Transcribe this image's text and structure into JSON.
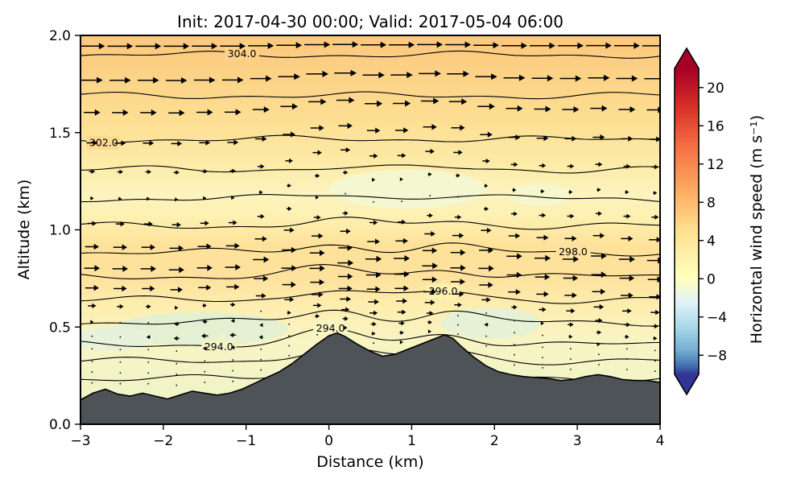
{
  "figure": {
    "background": "#ffffff"
  },
  "chart_data": {
    "type": "heatmap",
    "title": "Init: 2017-04-30 00:00; Valid: 2017-05-04 06:00",
    "xlabel": "Distance (km)",
    "ylabel": "Altitude (km)",
    "xlim": [
      -3,
      4
    ],
    "ylim": [
      0.0,
      2.0
    ],
    "x_ticks": [
      -3,
      -2,
      -1,
      0,
      1,
      2,
      3,
      4
    ],
    "x_tick_labels": [
      "−3",
      "−2",
      "−1",
      "0",
      "1",
      "2",
      "3",
      "4"
    ],
    "y_ticks": [
      0.0,
      0.5,
      1.0,
      1.5,
      2.0
    ],
    "y_tick_labels": [
      "0.0",
      "0.5",
      "1.0",
      "1.5",
      "2.0"
    ],
    "grid": false,
    "colorbar": {
      "label": "Horizontal wind speed (m s⁻¹)",
      "ticks": [
        20,
        16,
        12,
        8,
        4,
        0,
        -4,
        -8
      ],
      "tick_labels": [
        "20",
        "16",
        "12",
        "8",
        "4",
        "0",
        "−4",
        "−8"
      ],
      "vmin": -10,
      "vmax": 22,
      "colormap": "RdYlBu_r",
      "extend": "both",
      "gradient": [
        {
          "o": 0,
          "c": "#a50026"
        },
        {
          "o": 12.5,
          "c": "#d73027"
        },
        {
          "o": 25,
          "c": "#f46d43"
        },
        {
          "o": 40.6,
          "c": "#fdae61"
        },
        {
          "o": 53.1,
          "c": "#fee090"
        },
        {
          "o": 68.8,
          "c": "#ffffbf"
        },
        {
          "o": 76.6,
          "c": "#e0f3f8"
        },
        {
          "o": 84.4,
          "c": "#abd9e9"
        },
        {
          "o": 92.2,
          "c": "#74add1"
        },
        {
          "o": 96.9,
          "c": "#4575b4"
        },
        {
          "o": 100,
          "c": "#313695"
        }
      ],
      "arrow_top_color": "#a50026",
      "arrow_bottom_color": "#313695"
    },
    "fill_gradient": [
      {
        "o": 0,
        "c": "#fbc87d"
      },
      {
        "o": 10,
        "c": "#fcd286"
      },
      {
        "o": 22,
        "c": "#fddf93"
      },
      {
        "o": 33,
        "c": "#fdeba7"
      },
      {
        "o": 41,
        "c": "#fcf4bf"
      },
      {
        "o": 47,
        "c": "#fdf0b0"
      },
      {
        "o": 54,
        "c": "#fee29a"
      },
      {
        "o": 62,
        "c": "#fee19c"
      },
      {
        "o": 70,
        "c": "#fdeeb0"
      },
      {
        "o": 79,
        "c": "#f8f4c4"
      },
      {
        "o": 88,
        "c": "#f2f4c6"
      },
      {
        "o": 100,
        "c": "#eff3c4"
      }
    ],
    "low_wind_patches": [
      {
        "cx": -1.55,
        "cy": 0.49,
        "rx": 1.05,
        "ry": 0.085,
        "color": "#e3f0d2"
      },
      {
        "cx": -2.62,
        "cy": 0.44,
        "rx": 0.5,
        "ry": 0.06,
        "color": "#e8f2da"
      },
      {
        "cx": 1.95,
        "cy": 0.52,
        "rx": 0.6,
        "ry": 0.08,
        "color": "#e6f1d6"
      },
      {
        "cx": 0.95,
        "cy": 1.21,
        "rx": 0.95,
        "ry": 0.1,
        "color": "#f4f7cf"
      },
      {
        "cx": 2.55,
        "cy": 1.18,
        "rx": 0.4,
        "ry": 0.055,
        "color": "#f6f7cd"
      }
    ],
    "contours": {
      "variable": "potential temperature (K)",
      "interval": 1.0,
      "levels": [
        {
          "value": 292,
          "z": 0.235
        },
        {
          "value": 293,
          "z": 0.325
        },
        {
          "value": 294,
          "z": 0.41
        },
        {
          "value": 295,
          "z": 0.525
        },
        {
          "value": 296,
          "z": 0.64
        },
        {
          "value": 297,
          "z": 0.76
        },
        {
          "value": 298,
          "z": 0.885
        },
        {
          "value": 299,
          "z": 1.02
        },
        {
          "value": 300,
          "z": 1.16
        },
        {
          "value": 301,
          "z": 1.31
        },
        {
          "value": 302,
          "z": 1.465
        },
        {
          "value": 303,
          "z": 1.69
        },
        {
          "value": 304,
          "z": 1.9
        }
      ],
      "labels": [
        {
          "text": "304.0",
          "x": -1.05,
          "level": 304,
          "bg": "#fdd189"
        },
        {
          "text": "302.0",
          "x": -2.72,
          "level": 302,
          "bg": "#fdda90"
        },
        {
          "text": "298.0",
          "x": 2.95,
          "level": 298,
          "bg": "#fee29c"
        },
        {
          "text": "296.0",
          "x": 1.38,
          "level": 296,
          "bg": "#fdf0b2"
        },
        {
          "text": "294.0",
          "x": 0.02,
          "level": 294,
          "bg": "#f8f5c3"
        },
        {
          "text": "294.0",
          "x": -1.33,
          "level": 294,
          "bg": "#f3f3c6"
        }
      ]
    },
    "terrain": {
      "color": "#4d5356",
      "profile": [
        [
          -3.0,
          0.125
        ],
        [
          -2.85,
          0.16
        ],
        [
          -2.7,
          0.18
        ],
        [
          -2.55,
          0.155
        ],
        [
          -2.4,
          0.145
        ],
        [
          -2.25,
          0.16
        ],
        [
          -2.1,
          0.145
        ],
        [
          -1.95,
          0.13
        ],
        [
          -1.8,
          0.15
        ],
        [
          -1.65,
          0.17
        ],
        [
          -1.5,
          0.16
        ],
        [
          -1.35,
          0.15
        ],
        [
          -1.2,
          0.16
        ],
        [
          -1.05,
          0.18
        ],
        [
          -0.9,
          0.21
        ],
        [
          -0.75,
          0.24
        ],
        [
          -0.6,
          0.27
        ],
        [
          -0.45,
          0.31
        ],
        [
          -0.3,
          0.36
        ],
        [
          -0.15,
          0.41
        ],
        [
          0.0,
          0.455
        ],
        [
          0.1,
          0.47
        ],
        [
          0.2,
          0.45
        ],
        [
          0.35,
          0.41
        ],
        [
          0.5,
          0.375
        ],
        [
          0.65,
          0.35
        ],
        [
          0.8,
          0.36
        ],
        [
          0.95,
          0.385
        ],
        [
          1.1,
          0.41
        ],
        [
          1.25,
          0.435
        ],
        [
          1.4,
          0.46
        ],
        [
          1.5,
          0.44
        ],
        [
          1.6,
          0.4
        ],
        [
          1.75,
          0.345
        ],
        [
          1.9,
          0.3
        ],
        [
          2.05,
          0.27
        ],
        [
          2.2,
          0.255
        ],
        [
          2.35,
          0.245
        ],
        [
          2.5,
          0.24
        ],
        [
          2.65,
          0.235
        ],
        [
          2.8,
          0.225
        ],
        [
          2.95,
          0.23
        ],
        [
          3.1,
          0.245
        ],
        [
          3.25,
          0.255
        ],
        [
          3.4,
          0.245
        ],
        [
          3.55,
          0.23
        ],
        [
          3.7,
          0.225
        ],
        [
          3.85,
          0.225
        ],
        [
          4.0,
          0.215
        ]
      ]
    },
    "wind": {
      "units": "m s⁻¹",
      "column_x_start": -2.86,
      "column_x_step": 0.34,
      "levels": [
        0.06,
        0.12,
        0.18,
        0.25,
        0.32,
        0.4,
        0.49,
        0.59,
        0.7,
        0.82,
        0.95,
        1.09,
        1.24,
        1.4,
        1.57,
        1.75,
        1.94
      ],
      "speed_profile": {
        "h": [
          0,
          0.25,
          0.4,
          0.55,
          0.7,
          0.85,
          1.0,
          1.15,
          1.3,
          1.45,
          1.6,
          1.8,
          2.0
        ],
        "u": [
          0.1,
          0.3,
          0.7,
          2.2,
          3.8,
          4.4,
          2.8,
          0.9,
          1.6,
          3.0,
          4.4,
          6.0,
          7.3
        ]
      },
      "negative_patches": [
        {
          "x": -1.5,
          "y": 0.5,
          "rx": 1.3,
          "ry": 0.13,
          "du": -3.5
        },
        {
          "x": 1.95,
          "y": 0.52,
          "rx": 0.6,
          "ry": 0.1,
          "du": -3.0
        },
        {
          "x": 0.95,
          "y": 1.2,
          "rx": 0.9,
          "ry": 0.12,
          "du": -0.8
        }
      ]
    }
  }
}
